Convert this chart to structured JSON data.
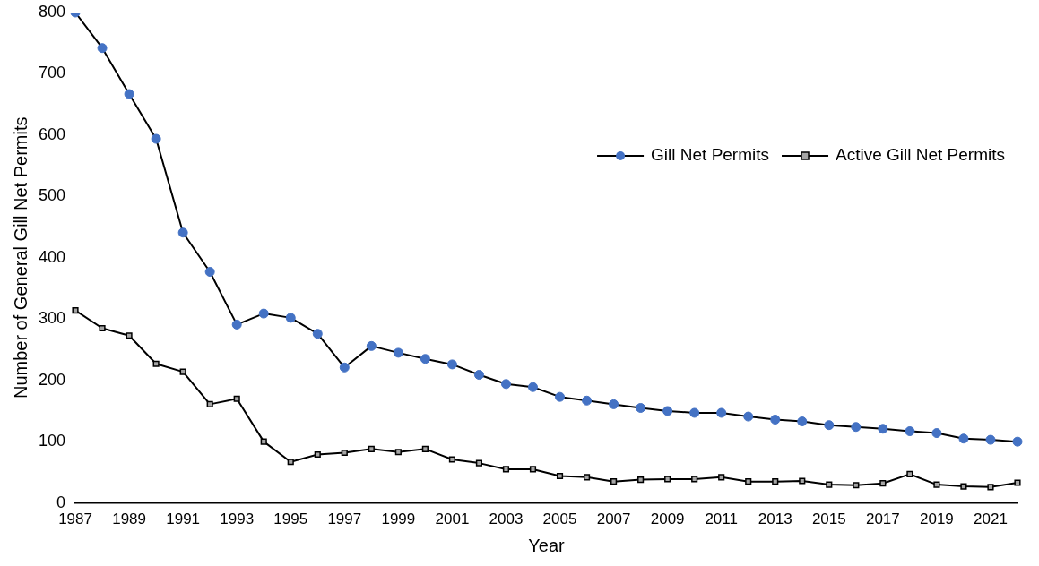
{
  "chart_data": {
    "type": "line",
    "xlabel": "Year",
    "ylabel": "Number of General Gill Net Permits",
    "categories": [
      "1987",
      null,
      "1989",
      null,
      "1991",
      null,
      "1993",
      null,
      "1995",
      null,
      "1997",
      null,
      "1999",
      null,
      "2001",
      null,
      "2003",
      null,
      "2005",
      null,
      "2007",
      null,
      "2009",
      null,
      "2011",
      null,
      "2013",
      null,
      "2015",
      null,
      "2017",
      null,
      "2019",
      null,
      "2021",
      null
    ],
    "series": [
      {
        "name": "Gill Net Permits",
        "color": "#4472c4",
        "marker": "circle",
        "values": [
          800,
          742,
          667,
          594,
          441,
          377,
          291,
          309,
          302,
          276,
          221,
          256,
          245,
          235,
          226,
          209,
          194,
          189,
          173,
          167,
          161,
          155,
          150,
          147,
          147,
          141,
          136,
          133,
          127,
          124,
          121,
          117,
          114,
          105,
          103,
          100
        ]
      },
      {
        "name": "Active Gill Net Permits",
        "color": "#a5a5a5",
        "marker": "square",
        "values": [
          314,
          285,
          273,
          227,
          214,
          161,
          170,
          100,
          67,
          79,
          82,
          88,
          83,
          88,
          71,
          65,
          55,
          55,
          44,
          42,
          35,
          38,
          39,
          39,
          42,
          35,
          35,
          36,
          30,
          29,
          32,
          47,
          30,
          27,
          26,
          33
        ]
      }
    ],
    "ylim": [
      0,
      800
    ],
    "yticks": [
      0,
      100,
      200,
      300,
      400,
      500,
      600,
      700,
      800
    ],
    "grid": false,
    "legend": "top right",
    "line_style": "solid"
  }
}
